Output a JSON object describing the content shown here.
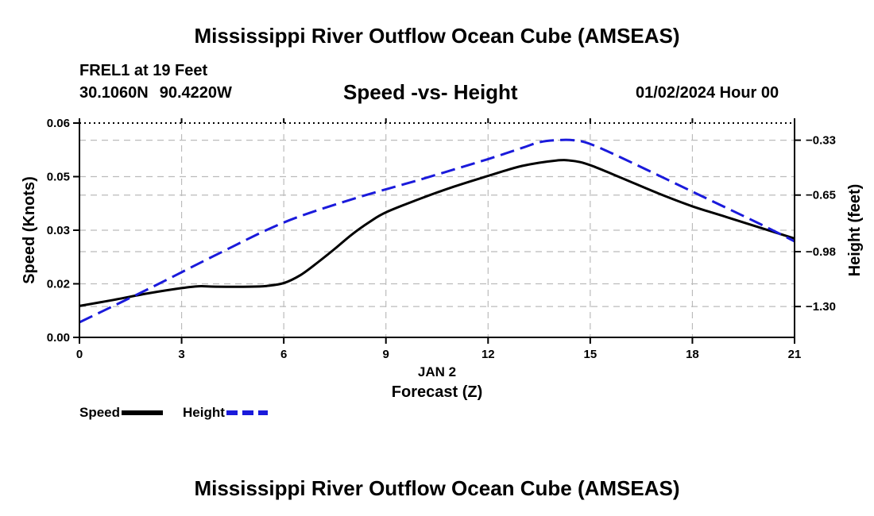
{
  "header": {
    "title": "Mississippi River Outflow Ocean Cube (AMSEAS)",
    "station": "FREL1 at 19 Feet",
    "lat": "30.1060N",
    "lon": "90.4220W",
    "subtitle": "Speed -vs- Height",
    "datestamp": "01/02/2024 Hour 00"
  },
  "footer": {
    "title": "Mississippi River Outflow Ocean Cube (AMSEAS)"
  },
  "legend": {
    "speed_label": "Speed",
    "height_label": "Height",
    "speed_color": "#000000",
    "height_color": "#1a1adb"
  },
  "chart_data": {
    "type": "line",
    "title": "Speed -vs- Height",
    "xlabel": "Forecast (Z)",
    "xlabel_date": "JAN 2",
    "ylabel": "Speed (Knots)",
    "y2label": "Height (feet)",
    "xlim": [
      0,
      21
    ],
    "ylim": [
      0,
      0.06
    ],
    "y2lim": [
      -1.48,
      -0.23
    ],
    "x_ticks": [
      0,
      3,
      6,
      9,
      12,
      15,
      18,
      21
    ],
    "x_tick_labels": [
      "0",
      "3",
      "6",
      "9",
      "12",
      "15",
      "18",
      "21"
    ],
    "y_ticks": [
      0,
      0.015,
      0.03,
      0.045,
      0.06
    ],
    "y_tick_labels": [
      "0.00",
      "0.02",
      "0.03",
      "0.05",
      "0.06"
    ],
    "y2_ticks": [
      -0.33,
      -0.65,
      -0.98,
      -1.3
    ],
    "y2_tick_labels": [
      "−0.33",
      "−0.65",
      "−0.98",
      "−1.30"
    ],
    "grid": true,
    "series": [
      {
        "name": "Speed",
        "axis": "left",
        "color": "#000000",
        "style": "solid",
        "x": [
          0,
          1,
          2,
          3,
          3.5,
          4,
          5,
          5.5,
          6,
          6.5,
          7,
          7.5,
          8,
          8.5,
          9,
          10,
          11,
          12,
          13,
          14,
          14.5,
          15,
          16,
          17,
          18,
          19,
          20,
          21
        ],
        "y": [
          0.0088,
          0.0105,
          0.0123,
          0.0138,
          0.0143,
          0.0142,
          0.0142,
          0.0144,
          0.0152,
          0.0175,
          0.021,
          0.0248,
          0.0288,
          0.0322,
          0.035,
          0.0388,
          0.0422,
          0.0452,
          0.048,
          0.0495,
          0.0494,
          0.0482,
          0.0443,
          0.0403,
          0.0367,
          0.0337,
          0.0307,
          0.0277
        ]
      },
      {
        "name": "Height",
        "axis": "right",
        "color": "#1a1adb",
        "style": "dashed",
        "x": [
          0,
          2,
          4,
          6,
          8,
          10,
          12,
          13,
          13.5,
          14,
          14.5,
          15,
          16,
          18,
          20,
          21
        ],
        "y": [
          -1.392,
          -1.2,
          -1.0,
          -0.81,
          -0.675,
          -0.56,
          -0.44,
          -0.375,
          -0.342,
          -0.33,
          -0.33,
          -0.352,
          -0.44,
          -0.63,
          -0.82,
          -0.92
        ]
      }
    ]
  }
}
